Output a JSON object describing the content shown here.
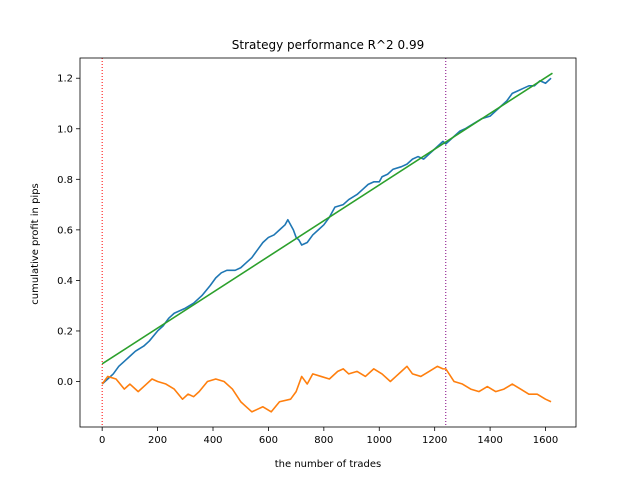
{
  "chart_data": {
    "type": "line",
    "title": "Strategy performance R^2 0.99",
    "xlabel": "the number of trades",
    "ylabel": "cumulative profit in pips",
    "xlim": [
      -80,
      1710
    ],
    "ylim": [
      -0.18,
      1.28
    ],
    "xticks": [
      0,
      200,
      400,
      600,
      800,
      1000,
      1200,
      1400,
      1600
    ],
    "xtick_labels": [
      "0",
      "200",
      "400",
      "600",
      "800",
      "1000",
      "1200",
      "1400",
      "1600"
    ],
    "yticks": [
      0.0,
      0.2,
      0.4,
      0.6,
      0.8,
      1.0,
      1.2
    ],
    "ytick_labels": [
      "0.0",
      "0.2",
      "0.4",
      "0.6",
      "0.8",
      "1.0",
      "1.2"
    ],
    "grid": false,
    "legend": false,
    "vlines": [
      {
        "x": 0,
        "color": "#ff0000",
        "style": "dotted"
      },
      {
        "x": 1240,
        "color": "#800080",
        "style": "dotted"
      }
    ],
    "series": [
      {
        "color": "#1f77b4",
        "x": [
          0,
          20,
          40,
          60,
          80,
          100,
          120,
          150,
          170,
          200,
          220,
          240,
          260,
          280,
          300,
          330,
          360,
          390,
          410,
          430,
          450,
          480,
          500,
          520,
          540,
          560,
          580,
          600,
          620,
          640,
          660,
          670,
          690,
          700,
          710,
          720,
          740,
          760,
          780,
          800,
          820,
          840,
          870,
          890,
          920,
          940,
          960,
          980,
          1000,
          1010,
          1030,
          1050,
          1080,
          1100,
          1120,
          1140,
          1160,
          1180,
          1200,
          1230,
          1240,
          1260,
          1290,
          1310,
          1340,
          1370,
          1400,
          1420,
          1440,
          1460,
          1480,
          1500,
          1520,
          1540,
          1560,
          1580,
          1600,
          1620
        ],
        "y": [
          -0.01,
          0.01,
          0.03,
          0.06,
          0.08,
          0.1,
          0.12,
          0.14,
          0.16,
          0.2,
          0.22,
          0.25,
          0.27,
          0.28,
          0.29,
          0.31,
          0.34,
          0.38,
          0.41,
          0.43,
          0.44,
          0.44,
          0.45,
          0.47,
          0.49,
          0.52,
          0.55,
          0.57,
          0.58,
          0.6,
          0.62,
          0.64,
          0.6,
          0.57,
          0.56,
          0.54,
          0.55,
          0.58,
          0.6,
          0.62,
          0.65,
          0.69,
          0.7,
          0.72,
          0.74,
          0.76,
          0.78,
          0.79,
          0.79,
          0.81,
          0.82,
          0.84,
          0.85,
          0.86,
          0.88,
          0.89,
          0.88,
          0.9,
          0.92,
          0.95,
          0.94,
          0.96,
          0.99,
          1.0,
          1.02,
          1.04,
          1.05,
          1.07,
          1.09,
          1.11,
          1.14,
          1.15,
          1.16,
          1.17,
          1.17,
          1.19,
          1.18,
          1.2
        ]
      },
      {
        "color": "#ff7f0e",
        "x": [
          0,
          20,
          50,
          80,
          100,
          130,
          160,
          180,
          200,
          230,
          260,
          290,
          310,
          330,
          350,
          380,
          410,
          440,
          470,
          500,
          520,
          540,
          560,
          580,
          610,
          640,
          680,
          700,
          720,
          740,
          760,
          790,
          820,
          850,
          870,
          890,
          920,
          950,
          980,
          1010,
          1040,
          1060,
          1080,
          1100,
          1120,
          1150,
          1180,
          1210,
          1230,
          1240,
          1270,
          1300,
          1330,
          1360,
          1390,
          1420,
          1450,
          1480,
          1510,
          1540,
          1570,
          1600,
          1620
        ],
        "y": [
          -0.01,
          0.02,
          0.01,
          -0.03,
          -0.01,
          -0.04,
          -0.01,
          0.01,
          0.0,
          -0.01,
          -0.03,
          -0.07,
          -0.05,
          -0.06,
          -0.04,
          0.0,
          0.01,
          0.0,
          -0.03,
          -0.08,
          -0.1,
          -0.12,
          -0.11,
          -0.1,
          -0.12,
          -0.08,
          -0.07,
          -0.04,
          0.02,
          -0.01,
          0.03,
          0.02,
          0.01,
          0.04,
          0.05,
          0.03,
          0.04,
          0.02,
          0.05,
          0.03,
          0.0,
          0.02,
          0.04,
          0.06,
          0.03,
          0.02,
          0.04,
          0.06,
          0.05,
          0.05,
          0.0,
          -0.01,
          -0.03,
          -0.04,
          -0.02,
          -0.04,
          -0.03,
          -0.01,
          -0.03,
          -0.05,
          -0.05,
          -0.07,
          -0.08
        ]
      },
      {
        "color": "#2ca02c",
        "x": [
          0,
          1625
        ],
        "y": [
          0.07,
          1.22
        ]
      }
    ]
  }
}
